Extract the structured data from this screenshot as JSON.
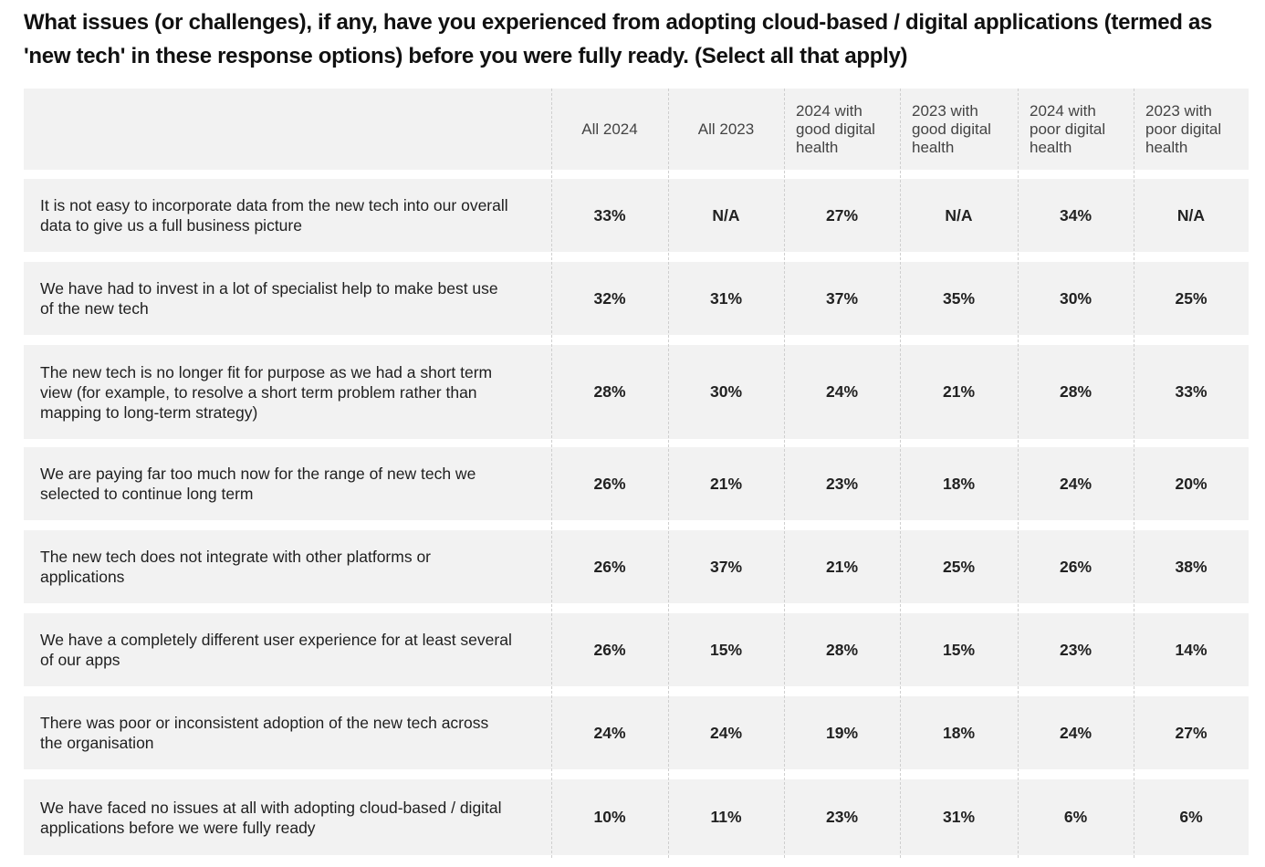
{
  "title": "What issues (or challenges), if any, have you experienced from adopting cloud-based / digital applications (termed as 'new tech' in these response options) before you were fully ready. (Select all that apply)",
  "columns": [
    "All 2024",
    "All 2023",
    "2024 with good digital health",
    "2023 with good digital health",
    "2024 with poor digital health",
    "2023 with poor digital health"
  ],
  "rows": [
    {
      "label": "It is not easy to incorporate data from the new tech into our overall data to give us a full business picture",
      "values": [
        "33%",
        "N/A",
        "27%",
        "N/A",
        "34%",
        "N/A"
      ]
    },
    {
      "label": "We have had to invest in a lot of specialist help to make best use of the new tech",
      "values": [
        "32%",
        "31%",
        "37%",
        "35%",
        "30%",
        "25%"
      ]
    },
    {
      "label": "The new tech is no longer fit for purpose as we had a short term view (for example, to resolve a short term problem rather than mapping to long-term strategy)",
      "values": [
        "28%",
        "30%",
        "24%",
        "21%",
        "28%",
        "33%"
      ]
    },
    {
      "label": "We are paying far too much now for the range of new tech we selected to continue long term",
      "values": [
        "26%",
        "21%",
        "23%",
        "18%",
        "24%",
        "20%"
      ]
    },
    {
      "label": "The new tech does not integrate with other platforms or applications",
      "values": [
        "26%",
        "37%",
        "21%",
        "25%",
        "26%",
        "38%"
      ]
    },
    {
      "label": "We have a completely different user experience for at least several of our apps",
      "values": [
        "26%",
        "15%",
        "28%",
        "15%",
        "23%",
        "14%"
      ]
    },
    {
      "label": "There was poor or inconsistent adoption of the new tech across the organisation",
      "values": [
        "24%",
        "24%",
        "19%",
        "18%",
        "24%",
        "27%"
      ]
    },
    {
      "label": "We have faced no issues at all with adopting cloud-based / digital applications before we were fully ready",
      "values": [
        "10%",
        "11%",
        "23%",
        "31%",
        "6%",
        "6%"
      ]
    }
  ]
}
